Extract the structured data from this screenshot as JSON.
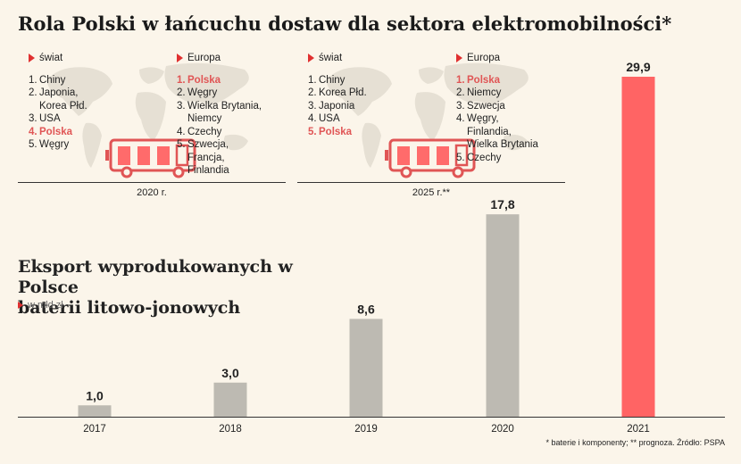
{
  "title": "Rola Polski w łańcuchu dostaw dla sektora elektromobilności*",
  "panels": {
    "p2020": {
      "year": "2020 r.",
      "world_label": "świat",
      "europe_label": "Europa",
      "world": [
        {
          "num": "1.",
          "name": "Chiny"
        },
        {
          "num": "2.",
          "name": "Japonia,\nKorea Płd."
        },
        {
          "num": "3.",
          "name": "USA"
        },
        {
          "num": "4.",
          "name": "Polska",
          "highlight": true
        },
        {
          "num": "5.",
          "name": "Węgry"
        }
      ],
      "europe": [
        {
          "num": "1.",
          "name": "Polska",
          "highlight": true
        },
        {
          "num": "2.",
          "name": "Węgry"
        },
        {
          "num": "3.",
          "name": "Wielka Brytania,\nNiemcy"
        },
        {
          "num": "4.",
          "name": "Czechy"
        },
        {
          "num": "5.",
          "name": "Szwecja,\nFrancja,\nFinlandia"
        }
      ]
    },
    "p2025": {
      "year": "2025 r.**",
      "world_label": "świat",
      "europe_label": "Europa",
      "world": [
        {
          "num": "1.",
          "name": "Chiny"
        },
        {
          "num": "2.",
          "name": "Korea Płd."
        },
        {
          "num": "3.",
          "name": "Japonia"
        },
        {
          "num": "4.",
          "name": "USA"
        },
        {
          "num": "5.",
          "name": "Polska",
          "highlight": true
        }
      ],
      "europe": [
        {
          "num": "1.",
          "name": "Polska",
          "highlight": true
        },
        {
          "num": "2.",
          "name": "Niemcy"
        },
        {
          "num": "3.",
          "name": "Szwecja"
        },
        {
          "num": "4.",
          "name": "Węgry,\nFinlandia,\nWielka Brytania"
        },
        {
          "num": "5.",
          "name": "Czechy"
        }
      ]
    }
  },
  "icons": [
    "world-map-icon",
    "battery-truck-icon"
  ],
  "source": "* baterie i komponenty; ** prognoza. Źródło: PSPA",
  "colors": {
    "highlight": "#ff6464",
    "bar": "#bdbab2",
    "accent": "#e03030",
    "background": "#fbf5ea"
  },
  "chart_data": {
    "type": "bar",
    "title": "Eksport wyprodukowanych w Polsce\nbaterii litowo-jonowych",
    "unit": "w mld zł",
    "categories": [
      "2017",
      "2018",
      "2019",
      "2020",
      "2021"
    ],
    "values": [
      1.0,
      3.0,
      8.6,
      17.8,
      29.9
    ],
    "value_labels": [
      "1,0",
      "3,0",
      "8,6",
      "17,8",
      "29,9"
    ],
    "highlight_category": "2021",
    "ylim": [
      0,
      29.9
    ],
    "grid": false,
    "legend": "none"
  }
}
